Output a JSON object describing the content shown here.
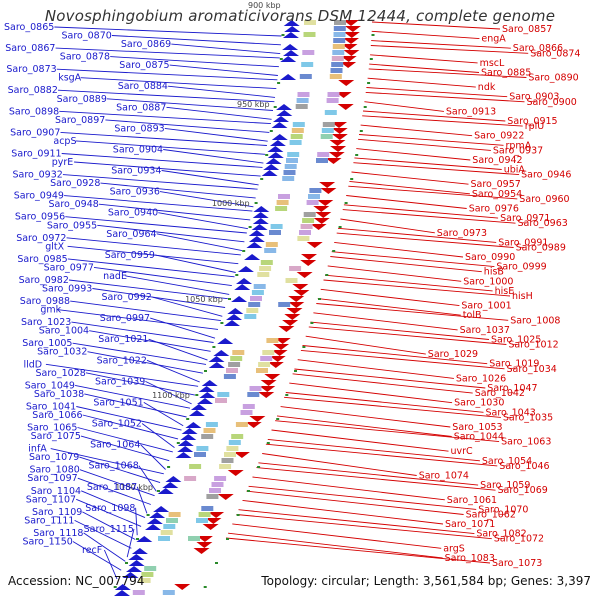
{
  "header": {
    "title": "Novosphingobium aromaticivorans DSM 12444, complete genome",
    "partial_top_label": "900 kbp"
  },
  "footer": {
    "accession": "Accession: NC_007794",
    "stats": "Topology: circular; Length: 3,561,584 bp; Genes: 3,397"
  },
  "colors": {
    "forward_strand": "#1a1acc",
    "reverse_strand": "#d40000",
    "backbone": "#8c8c8c",
    "tick": "#2a8a2a"
  },
  "kbp_markers": [
    "950 kbp",
    "1000 kbp",
    "1050 kbp",
    "1100 kbp",
    "1150 kbp"
  ],
  "left_labels": [
    "Saro_0865",
    "Saro_0870",
    "Saro_0869",
    "Saro_0867",
    "Saro_0878",
    "Saro_0875",
    "Saro_0873",
    "ksgA",
    "Saro_0884",
    "Saro_0882",
    "Saro_0889",
    "Saro_0887",
    "Saro_0898",
    "Saro_0897",
    "Saro_0893",
    "Saro_0907",
    "acpS",
    "Saro_0904",
    "Saro_0911",
    "pyrE",
    "Saro_0934",
    "Saro_0932",
    "Saro_0928",
    "Saro_0936",
    "Saro_0949",
    "Saro_0948",
    "Saro_0940",
    "Saro_0956",
    "Saro_0955",
    "Saro_0964",
    "Saro_0972",
    "gltX",
    "Saro_0959",
    "Saro_0985",
    "Saro_0977",
    "nadE",
    "Saro_0982",
    "Saro_0993",
    "Saro_0992",
    "Saro_0988",
    "gmk",
    "Saro_0997",
    "Saro_1023",
    "Saro_1004",
    "Saro_1021",
    "Saro_1005",
    "Saro_1032",
    "Saro_1022",
    "lldD",
    "Saro_1028",
    "Saro_1039",
    "Saro_1049",
    "Saro_1038",
    "Saro_1051",
    "Saro_1041",
    "Saro_1066",
    "Saro_1052",
    "Saro_1065",
    "Saro_1075",
    "Saro_1064",
    "infA",
    "Saro_1079",
    "Saro_1068",
    "Saro_1080",
    "Saro_1097",
    "Saro_1087",
    "Saro_1104",
    "Saro_1107",
    "Saro_1098",
    "Saro_1109",
    "Saro_1111",
    "Saro_1115",
    "Saro_1118",
    "Saro_1150",
    "recF"
  ],
  "right_labels": [
    "Saro_0857",
    "engA",
    "Saro_0866",
    "Saro_0874",
    "mscL",
    "Saro_0885",
    "Saro_0890",
    "ndk",
    "Saro_0903",
    "Saro_0900",
    "Saro_0913",
    "Saro_0915",
    "rplU",
    "Saro_0922",
    "rpmA",
    "Saro_0937",
    "Saro_0942",
    "ubiA",
    "Saro_0946",
    "Saro_0957",
    "Saro_0954",
    "Saro_0960",
    "Saro_0976",
    "Saro_0971",
    "Saro_0963",
    "Saro_0973",
    "Saro_0991",
    "Saro_0989",
    "Saro_0990",
    "Saro_0999",
    "hisB",
    "Saro_1000",
    "hisE",
    "hisH",
    "Saro_1001",
    "tolB",
    "Saro_1008",
    "Saro_1037",
    "Saro_1025",
    "Saro_1012",
    "Saro_1029",
    "Saro_1019",
    "Saro_1034",
    "Saro_1026",
    "Saro_1047",
    "Saro_1042",
    "Saro_1030",
    "Saro_1043",
    "Saro_1035",
    "Saro_1053",
    "Saro_1044",
    "Saro_1063",
    "uvrC",
    "Saro_1054",
    "Saro_1046",
    "Saro_1074",
    "Saro_1059",
    "Saro_1069",
    "Saro_1061",
    "Saro_1070",
    "Saro_1062",
    "Saro_1071",
    "Saro_1082",
    "Saro_1072",
    "argS",
    "Saro_1083",
    "Saro_1073"
  ]
}
